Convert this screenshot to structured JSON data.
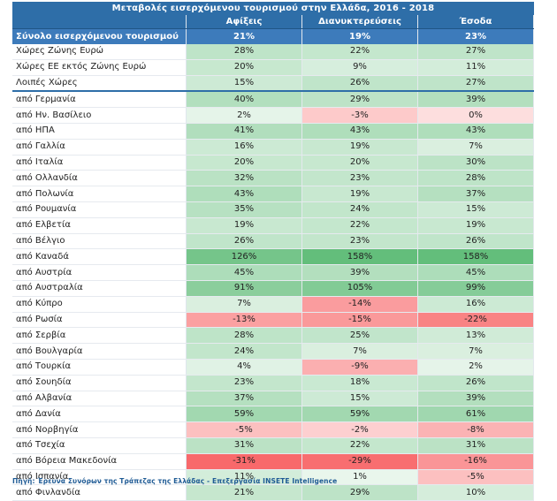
{
  "chart_data": {
    "type": "table",
    "title": "Μεταβολές εισερχόμενου τουρισμού στην Ελλάδα, 2016 - 2018",
    "columns": [
      "Αφίξεις",
      "Διανυκτερεύσεις",
      "Έσοδα"
    ],
    "total": {
      "label": "Σύνολο εισερχόμενου τουρισμού",
      "values": [
        "21%",
        "19%",
        "23%"
      ]
    },
    "rows": [
      {
        "label": "Χώρες Ζώνης Ευρώ",
        "values": [
          28,
          22,
          27
        ]
      },
      {
        "label": "Χώρες ΕΕ εκτός Ζώνης Ευρώ",
        "values": [
          20,
          9,
          11
        ]
      },
      {
        "label": "Λοιπές Χώρες",
        "values": [
          15,
          26,
          27
        ]
      },
      {
        "label": "από Γερμανία",
        "values": [
          40,
          29,
          39
        ]
      },
      {
        "label": "από Ην. Βασίλειο",
        "values": [
          2,
          -3,
          0
        ]
      },
      {
        "label": "από ΗΠΑ",
        "values": [
          41,
          43,
          43
        ]
      },
      {
        "label": "από Γαλλία",
        "values": [
          16,
          19,
          7
        ]
      },
      {
        "label": "από Ιταλία",
        "values": [
          20,
          20,
          30
        ]
      },
      {
        "label": "από Ολλανδία",
        "values": [
          32,
          23,
          28
        ]
      },
      {
        "label": "από Πολωνία",
        "values": [
          43,
          19,
          37
        ]
      },
      {
        "label": "από Ρουμανία",
        "values": [
          35,
          24,
          15
        ]
      },
      {
        "label": "από Ελβετία",
        "values": [
          19,
          22,
          19
        ]
      },
      {
        "label": "από Βέλγιο",
        "values": [
          26,
          23,
          26
        ]
      },
      {
        "label": "από Καναδά",
        "values": [
          126,
          158,
          158
        ]
      },
      {
        "label": "από Αυστρία",
        "values": [
          45,
          39,
          45
        ]
      },
      {
        "label": "από Αυστραλία",
        "values": [
          91,
          105,
          99
        ]
      },
      {
        "label": "από Κύπρο",
        "values": [
          7,
          -14,
          16
        ]
      },
      {
        "label": "από Ρωσία",
        "values": [
          -13,
          -15,
          -22
        ]
      },
      {
        "label": "από Σερβία",
        "values": [
          28,
          25,
          13
        ]
      },
      {
        "label": "από Βουλγαρία",
        "values": [
          24,
          7,
          7
        ]
      },
      {
        "label": "από Τουρκία",
        "values": [
          4,
          -9,
          2
        ]
      },
      {
        "label": "από Σουηδία",
        "values": [
          23,
          18,
          26
        ]
      },
      {
        "label": "από Αλβανία",
        "values": [
          37,
          15,
          39
        ]
      },
      {
        "label": "από Δανία",
        "values": [
          59,
          59,
          61
        ]
      },
      {
        "label": "από Νορβηγία",
        "values": [
          -5,
          -2,
          -8
        ]
      },
      {
        "label": "από Τσεχία",
        "values": [
          31,
          22,
          31
        ]
      },
      {
        "label": "από Βόρεια Μακεδονία",
        "values": [
          -31,
          -29,
          -16
        ]
      },
      {
        "label": "από Ισπανία",
        "values": [
          11,
          1,
          -5
        ]
      },
      {
        "label": "από Φινλανδία",
        "values": [
          21,
          29,
          10
        ]
      }
    ],
    "value_suffix": "%",
    "colors": {
      "header": "#2e6ea8",
      "positive": "#63be7b",
      "negative": "#f8696b"
    }
  },
  "source": {
    "label": "Πηγή:",
    "text": "Έρευνα Συνόρων της Τράπεζας της Ελλάδας - Επεξεργασία INSETE Intelligence"
  }
}
